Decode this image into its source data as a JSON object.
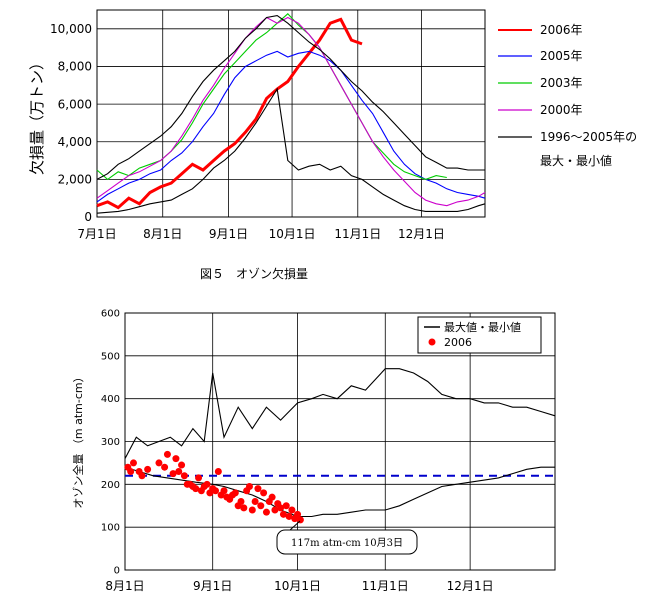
{
  "chart_data": [
    {
      "type": "line",
      "ylabel": "欠損量（万トン）",
      "x_ticks": [
        "7月1日",
        "8月1日",
        "9月1日",
        "10月1日",
        "11月1日",
        "12月1日"
      ],
      "x_range_days": [
        0,
        183
      ],
      "y_ticks": [
        "0",
        "2,000",
        "4,000",
        "6,000",
        "8,000",
        "10,000"
      ],
      "ylim": [
        0,
        11000
      ],
      "grid": true,
      "legend_position": "right",
      "series": [
        {
          "name": "2006年",
          "color": "#ff0000",
          "x": [
            0,
            5,
            10,
            15,
            20,
            25,
            30,
            35,
            40,
            45,
            50,
            55,
            60,
            65,
            70,
            75,
            80,
            85,
            90,
            95,
            100,
            105,
            110,
            115,
            120,
            125
          ],
          "y": [
            600,
            800,
            500,
            1000,
            700,
            1300,
            1600,
            1800,
            2300,
            2800,
            2500,
            3000,
            3500,
            3900,
            4500,
            5200,
            6300,
            6800,
            7200,
            8000,
            8700,
            9400,
            10300,
            10500,
            9400,
            9200
          ]
        },
        {
          "name": "2005年",
          "color": "#0000ff",
          "x": [
            0,
            5,
            10,
            15,
            20,
            25,
            30,
            35,
            40,
            45,
            50,
            55,
            60,
            65,
            70,
            75,
            80,
            85,
            90,
            95,
            100,
            105,
            110,
            115,
            120,
            125,
            130,
            135,
            140,
            145,
            150,
            155,
            160,
            165,
            170,
            175,
            180,
            183
          ],
          "y": [
            800,
            1200,
            1500,
            1800,
            2000,
            2300,
            2500,
            3000,
            3400,
            4000,
            4800,
            5500,
            6500,
            7400,
            8000,
            8300,
            8600,
            8800,
            8500,
            8700,
            8800,
            8600,
            8300,
            7800,
            7000,
            6200,
            5500,
            4500,
            3500,
            2800,
            2300,
            2000,
            1800,
            1500,
            1300,
            1200,
            1100,
            1000
          ]
        },
        {
          "name": "2003年",
          "color": "#00cc00",
          "x": [
            0,
            5,
            10,
            15,
            20,
            25,
            30,
            35,
            40,
            45,
            50,
            55,
            60,
            65,
            70,
            75,
            80,
            85,
            90,
            95,
            100,
            105,
            110,
            115,
            120,
            125,
            130,
            135,
            140,
            145,
            150,
            155,
            160,
            165
          ],
          "y": [
            2500,
            2000,
            2400,
            2200,
            2600,
            2800,
            3000,
            3500,
            4100,
            5000,
            6000,
            6800,
            7600,
            8200,
            8800,
            9400,
            9800,
            10300,
            10800,
            10200,
            9700,
            9000,
            8000,
            7000,
            6000,
            5000,
            4000,
            3400,
            2800,
            2400,
            2200,
            2000,
            2200,
            2100
          ]
        },
        {
          "name": "2000年",
          "color": "#cc00cc",
          "x": [
            0,
            5,
            10,
            15,
            20,
            25,
            30,
            35,
            40,
            45,
            50,
            55,
            60,
            65,
            70,
            75,
            80,
            85,
            90,
            95,
            100,
            105,
            110,
            115,
            120,
            125,
            130,
            135,
            140,
            145,
            150,
            155,
            160,
            165,
            170,
            175,
            180,
            183
          ],
          "y": [
            1000,
            1400,
            1800,
            2200,
            2400,
            2700,
            3000,
            3500,
            4300,
            5200,
            6200,
            7000,
            7900,
            8700,
            9500,
            10100,
            10600,
            10300,
            10600,
            10300,
            9700,
            9000,
            8000,
            7000,
            6000,
            5000,
            4000,
            3200,
            2500,
            1900,
            1300,
            900,
            700,
            600,
            800,
            900,
            1100,
            1300
          ]
        },
        {
          "name": "1996～2005年の",
          "color": "#000000",
          "x": [
            0,
            5,
            10,
            15,
            20,
            25,
            30,
            35,
            40,
            45,
            50,
            55,
            60,
            65,
            70,
            75,
            80,
            85,
            90,
            95,
            100,
            105,
            110,
            115,
            120,
            125,
            130,
            135,
            140,
            145,
            150,
            155,
            160,
            165,
            170,
            175,
            180,
            183
          ],
          "y": [
            2000,
            2300,
            2800,
            3100,
            3500,
            3900,
            4300,
            4800,
            5500,
            6400,
            7200,
            7800,
            8300,
            8800,
            9500,
            10000,
            10600,
            10700,
            10300,
            9800,
            9300,
            8900,
            8400,
            7800,
            7200,
            6700,
            6100,
            5600,
            5000,
            4400,
            3800,
            3200,
            2900,
            2600,
            2600,
            2500,
            2500,
            2500
          ]
        },
        {
          "name": "最大・最小値",
          "color": "#000000",
          "x": [
            0,
            5,
            10,
            15,
            20,
            25,
            30,
            35,
            40,
            45,
            50,
            55,
            60,
            65,
            70,
            75,
            80,
            85,
            90,
            95,
            100,
            105,
            110,
            115,
            120,
            125,
            130,
            135,
            140,
            145,
            150,
            155,
            160,
            165,
            170,
            175,
            180,
            183
          ],
          "y": [
            200,
            250,
            300,
            400,
            550,
            700,
            800,
            900,
            1200,
            1500,
            2000,
            2600,
            3000,
            3500,
            4200,
            5000,
            5900,
            6800,
            3000,
            2500,
            2700,
            2800,
            2500,
            2700,
            2200,
            2000,
            1600,
            1200,
            900,
            600,
            400,
            300,
            300,
            300,
            300,
            400,
            600,
            700
          ]
        }
      ],
      "legend_labels": [
        "2006年",
        "2005年",
        "2003年",
        "2000年",
        "1996～2005年の",
        "最大・最小値"
      ]
    },
    {
      "type": "line",
      "ylabel": "オゾン全量 （m atm-cm）",
      "x_ticks": [
        "8月1日",
        "9月1日",
        "10月1日",
        "11月1日",
        "12月1日"
      ],
      "x_range_days": [
        0,
        152
      ],
      "y_ticks": [
        "0",
        "100",
        "200",
        "300",
        "400",
        "500",
        "600"
      ],
      "ylim": [
        0,
        600
      ],
      "grid": true,
      "legend_position": "top-right",
      "reference_line": 220,
      "series": [
        {
          "name": "最大値・最小値",
          "color": "#000000",
          "x": [
            0,
            4,
            8,
            12,
            16,
            20,
            24,
            28,
            31,
            35,
            40,
            45,
            50,
            55,
            61,
            66,
            70,
            75,
            80,
            85,
            92,
            97,
            102,
            107,
            112,
            117,
            122,
            127,
            132,
            137,
            142,
            147,
            152
          ],
          "y": [
            260,
            310,
            290,
            300,
            310,
            290,
            330,
            300,
            460,
            310,
            380,
            330,
            380,
            350,
            390,
            400,
            410,
            400,
            430,
            420,
            470,
            470,
            460,
            440,
            410,
            400,
            400,
            390,
            390,
            380,
            380,
            370,
            360
          ]
        },
        {
          "name": "",
          "color": "#000000",
          "x": [
            0,
            5,
            10,
            15,
            20,
            25,
            31,
            35,
            40,
            45,
            50,
            55,
            61,
            66,
            70,
            75,
            80,
            85,
            92,
            97,
            102,
            107,
            112,
            117,
            122,
            127,
            132,
            137,
            142,
            147,
            152
          ],
          "y": [
            240,
            230,
            220,
            215,
            210,
            205,
            200,
            195,
            185,
            175,
            160,
            140,
            125,
            125,
            130,
            130,
            135,
            140,
            140,
            150,
            165,
            180,
            195,
            200,
            205,
            210,
            215,
            225,
            235,
            240,
            240
          ]
        },
        {
          "name": "2006",
          "color": "#ff0000",
          "type": "scatter",
          "x": [
            1,
            2,
            3,
            5,
            6,
            8,
            12,
            14,
            15,
            17,
            18,
            19,
            20,
            21,
            22,
            23,
            24,
            25,
            26,
            27,
            28,
            29,
            30,
            31,
            32,
            33,
            34,
            35,
            36,
            37,
            38,
            39,
            40,
            41,
            42,
            43,
            44,
            45,
            46,
            47,
            48,
            49,
            50,
            51,
            52,
            53,
            54,
            55,
            56,
            57,
            58,
            59,
            60,
            61,
            62
          ],
          "y": [
            240,
            230,
            250,
            230,
            220,
            235,
            250,
            240,
            270,
            225,
            260,
            230,
            245,
            220,
            200,
            200,
            195,
            190,
            215,
            185,
            195,
            200,
            180,
            190,
            185,
            230,
            175,
            185,
            170,
            165,
            175,
            180,
            150,
            160,
            145,
            185,
            195,
            140,
            160,
            190,
            150,
            180,
            135,
            160,
            170,
            140,
            155,
            145,
            130,
            150,
            125,
            140,
            120,
            130,
            117
          ]
        }
      ],
      "legend_labels": [
        "最大値・最小値",
        "2006"
      ],
      "annotation": "117m atm-cm 10月3日"
    }
  ],
  "caption": "図５　オゾン欠損量"
}
